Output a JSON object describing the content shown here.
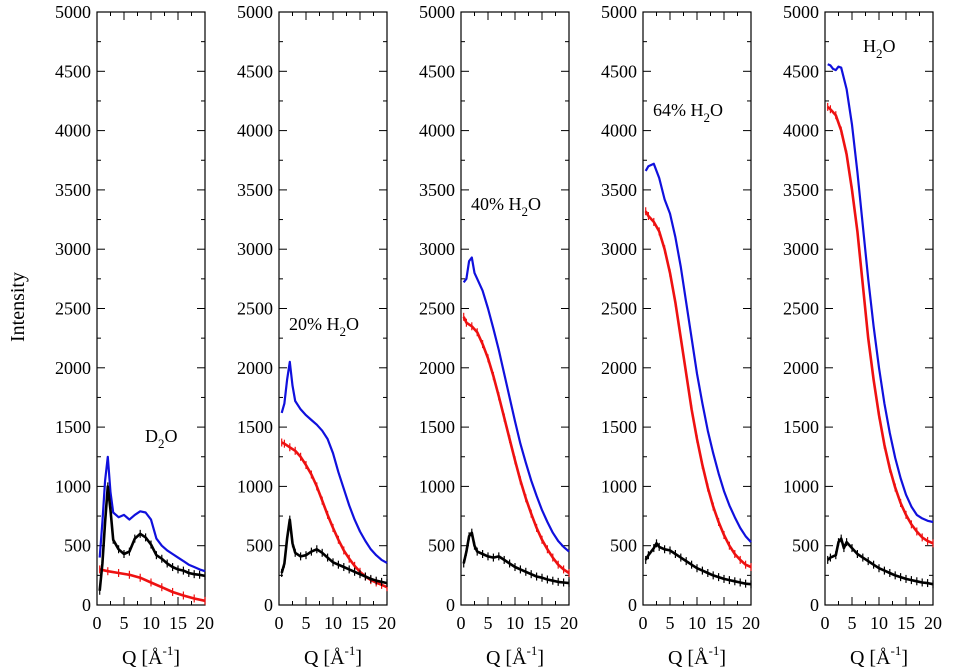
{
  "ylabel": "Intensity",
  "xlabel": "Q [Å⁻¹]",
  "xlabel_parts": {
    "pre": "Q [",
    "unit": "Å",
    "sup": "-1",
    "post": "]"
  },
  "xlim": [
    0,
    20
  ],
  "ylim": [
    0,
    5000
  ],
  "xticks": [
    0,
    5,
    10,
    15,
    20
  ],
  "yticks": [
    0,
    500,
    1000,
    1500,
    2000,
    2500,
    3000,
    3500,
    4000,
    4500,
    5000
  ],
  "colors": {
    "blue": "#1010dd",
    "red": "#ee1111",
    "black": "#000000"
  },
  "chart_data": [
    {
      "type": "line",
      "title": "D2O",
      "label_parts": {
        "pre": "D",
        "sub": "2",
        "post": "O"
      },
      "xlabel": "Q [Å⁻¹]",
      "ylabel": "Intensity",
      "xlim": [
        0,
        20
      ],
      "ylim": [
        0,
        5000
      ],
      "series": [
        {
          "name": "blue",
          "color": "#1010dd",
          "x": [
            0.5,
            1,
            1.5,
            2,
            2.5,
            3,
            4,
            5,
            6,
            7,
            8,
            9,
            10,
            11,
            12,
            13,
            14,
            15,
            16,
            17,
            18,
            19,
            20
          ],
          "values": [
            400,
            700,
            1050,
            1250,
            950,
            780,
            740,
            760,
            720,
            760,
            790,
            780,
            720,
            560,
            500,
            460,
            430,
            400,
            370,
            340,
            320,
            300,
            285
          ]
        },
        {
          "name": "red",
          "color": "#ee1111",
          "x": [
            0.5,
            2,
            4,
            6,
            8,
            10,
            12,
            14,
            16,
            18,
            20
          ],
          "values": [
            300,
            285,
            270,
            255,
            230,
            190,
            150,
            110,
            80,
            55,
            35
          ]
        },
        {
          "name": "black",
          "color": "#000000",
          "x": [
            0.5,
            1,
            1.5,
            2,
            2.5,
            3,
            4,
            5,
            6,
            7,
            8,
            9,
            10,
            11,
            12,
            13,
            14,
            15,
            16,
            17,
            18,
            19,
            20
          ],
          "values": [
            120,
            350,
            700,
            1000,
            800,
            550,
            470,
            430,
            450,
            560,
            600,
            570,
            510,
            420,
            390,
            350,
            320,
            300,
            290,
            270,
            260,
            255,
            245
          ]
        }
      ]
    },
    {
      "type": "line",
      "title": "20% H2O",
      "label_parts": {
        "pre": "20% H",
        "sub": "2",
        "post": "O"
      },
      "xlabel": "Q [Å⁻¹]",
      "ylabel": "Intensity",
      "xlim": [
        0,
        20
      ],
      "ylim": [
        0,
        5000
      ],
      "series": [
        {
          "name": "blue",
          "color": "#1010dd",
          "x": [
            0.5,
            1,
            1.5,
            2,
            2.5,
            3,
            4,
            5,
            6,
            7,
            8,
            9,
            10,
            11,
            12,
            13,
            14,
            15,
            16,
            17,
            18,
            19,
            20
          ],
          "values": [
            1620,
            1700,
            1900,
            2050,
            1850,
            1720,
            1650,
            1600,
            1560,
            1520,
            1470,
            1400,
            1280,
            1120,
            980,
            840,
            720,
            620,
            540,
            470,
            420,
            380,
            355
          ]
        },
        {
          "name": "red",
          "color": "#ee1111",
          "x": [
            0.5,
            1,
            2,
            3,
            4,
            5,
            6,
            7,
            8,
            9,
            10,
            11,
            12,
            13,
            14,
            15,
            16,
            17,
            18,
            19,
            20
          ],
          "values": [
            1370,
            1360,
            1330,
            1300,
            1250,
            1180,
            1100,
            1000,
            880,
            760,
            650,
            550,
            460,
            390,
            330,
            280,
            240,
            210,
            190,
            170,
            150
          ]
        },
        {
          "name": "black",
          "color": "#000000",
          "x": [
            0.5,
            1,
            1.5,
            2,
            2.5,
            3,
            4,
            5,
            6,
            7,
            8,
            9,
            10,
            11,
            12,
            13,
            14,
            15,
            16,
            17,
            18,
            19,
            20
          ],
          "values": [
            270,
            350,
            560,
            720,
            520,
            440,
            410,
            420,
            450,
            470,
            440,
            400,
            360,
            340,
            320,
            300,
            280,
            260,
            240,
            220,
            205,
            195,
            185
          ]
        }
      ]
    },
    {
      "type": "line",
      "title": "40% H2O",
      "label_parts": {
        "pre": "40% H",
        "sub": "2",
        "post": "O"
      },
      "xlabel": "Q [Å⁻¹]",
      "ylabel": "Intensity",
      "xlim": [
        0,
        20
      ],
      "ylim": [
        0,
        5000
      ],
      "series": [
        {
          "name": "blue",
          "color": "#1010dd",
          "x": [
            0.5,
            1,
            1.5,
            2,
            2.5,
            3,
            4,
            5,
            6,
            7,
            8,
            9,
            10,
            11,
            12,
            13,
            14,
            15,
            16,
            17,
            18,
            19,
            20
          ],
          "values": [
            2720,
            2750,
            2900,
            2930,
            2800,
            2750,
            2650,
            2500,
            2330,
            2150,
            1950,
            1750,
            1550,
            1360,
            1200,
            1050,
            920,
            800,
            700,
            610,
            540,
            490,
            450
          ]
        },
        {
          "name": "red",
          "color": "#ee1111",
          "x": [
            0.5,
            1,
            2,
            3,
            4,
            5,
            6,
            7,
            8,
            9,
            10,
            11,
            12,
            13,
            14,
            15,
            16,
            17,
            18,
            19,
            20
          ],
          "values": [
            2430,
            2380,
            2350,
            2300,
            2200,
            2080,
            1930,
            1760,
            1580,
            1400,
            1220,
            1050,
            900,
            770,
            650,
            550,
            470,
            400,
            340,
            300,
            270
          ]
        },
        {
          "name": "black",
          "color": "#000000",
          "x": [
            0.5,
            1,
            1.5,
            2,
            2.5,
            3,
            4,
            5,
            6,
            7,
            8,
            9,
            10,
            11,
            12,
            13,
            14,
            15,
            16,
            17,
            18,
            19,
            20
          ],
          "values": [
            350,
            450,
            580,
            610,
            500,
            450,
            430,
            410,
            400,
            410,
            380,
            350,
            320,
            300,
            280,
            260,
            240,
            230,
            215,
            205,
            195,
            190,
            185
          ]
        }
      ]
    },
    {
      "type": "line",
      "title": "64% H2O",
      "label_parts": {
        "pre": "64% H",
        "sub": "2",
        "post": "O"
      },
      "xlabel": "Q [Å⁻¹]",
      "ylabel": "Intensity",
      "xlim": [
        0,
        20
      ],
      "ylim": [
        0,
        5000
      ],
      "series": [
        {
          "name": "blue",
          "color": "#1010dd",
          "x": [
            0.5,
            1,
            2,
            3,
            4,
            5,
            6,
            7,
            8,
            9,
            10,
            11,
            12,
            13,
            14,
            15,
            16,
            17,
            18,
            19,
            20
          ],
          "values": [
            3660,
            3700,
            3720,
            3600,
            3420,
            3300,
            3100,
            2850,
            2550,
            2250,
            1950,
            1700,
            1470,
            1280,
            1110,
            960,
            840,
            740,
            650,
            580,
            530
          ]
        },
        {
          "name": "red",
          "color": "#ee1111",
          "x": [
            0.5,
            1,
            2,
            3,
            4,
            5,
            6,
            7,
            8,
            9,
            10,
            11,
            12,
            13,
            14,
            15,
            16,
            17,
            18,
            19,
            20
          ],
          "values": [
            3320,
            3280,
            3230,
            3150,
            3000,
            2800,
            2550,
            2250,
            1950,
            1650,
            1400,
            1180,
            990,
            830,
            700,
            590,
            500,
            430,
            380,
            340,
            320
          ]
        },
        {
          "name": "black",
          "color": "#000000",
          "x": [
            0.5,
            1,
            2,
            2.5,
            3,
            4,
            5,
            6,
            7,
            8,
            9,
            10,
            11,
            12,
            13,
            14,
            15,
            16,
            17,
            18,
            19,
            20
          ],
          "values": [
            380,
            420,
            480,
            520,
            490,
            470,
            460,
            430,
            400,
            370,
            340,
            310,
            290,
            270,
            250,
            235,
            220,
            210,
            200,
            190,
            180,
            175
          ]
        }
      ]
    },
    {
      "type": "line",
      "title": "H2O",
      "label_parts": {
        "pre": "H",
        "sub": "2",
        "post": "O"
      },
      "xlabel": "Q [Å⁻¹]",
      "ylabel": "Intensity",
      "xlim": [
        0,
        20
      ],
      "ylim": [
        0,
        5000
      ],
      "series": [
        {
          "name": "blue",
          "color": "#1010dd",
          "x": [
            0.5,
            1,
            1.5,
            2,
            2.5,
            3,
            4,
            5,
            6,
            7,
            8,
            9,
            10,
            11,
            12,
            13,
            14,
            15,
            16,
            17,
            18,
            19,
            20
          ],
          "values": [
            4560,
            4550,
            4520,
            4510,
            4540,
            4530,
            4350,
            4050,
            3650,
            3200,
            2750,
            2350,
            2000,
            1700,
            1450,
            1240,
            1070,
            930,
            830,
            760,
            730,
            710,
            700
          ]
        },
        {
          "name": "red",
          "color": "#ee1111",
          "x": [
            0.5,
            1,
            2,
            3,
            4,
            5,
            6,
            7,
            8,
            9,
            10,
            11,
            12,
            13,
            14,
            15,
            16,
            17,
            18,
            19,
            20
          ],
          "values": [
            4200,
            4180,
            4130,
            4000,
            3800,
            3500,
            3150,
            2700,
            2250,
            1900,
            1600,
            1350,
            1150,
            990,
            860,
            760,
            680,
            620,
            570,
            540,
            520
          ]
        },
        {
          "name": "black",
          "color": "#000000",
          "x": [
            0.5,
            1,
            2,
            2.5,
            3,
            3.5,
            4,
            5,
            6,
            7,
            8,
            9,
            10,
            11,
            12,
            13,
            14,
            15,
            16,
            17,
            18,
            19,
            20
          ],
          "values": [
            380,
            400,
            420,
            530,
            560,
            480,
            530,
            480,
            430,
            400,
            370,
            340,
            310,
            290,
            270,
            250,
            235,
            220,
            210,
            200,
            190,
            185,
            175
          ]
        }
      ]
    }
  ]
}
